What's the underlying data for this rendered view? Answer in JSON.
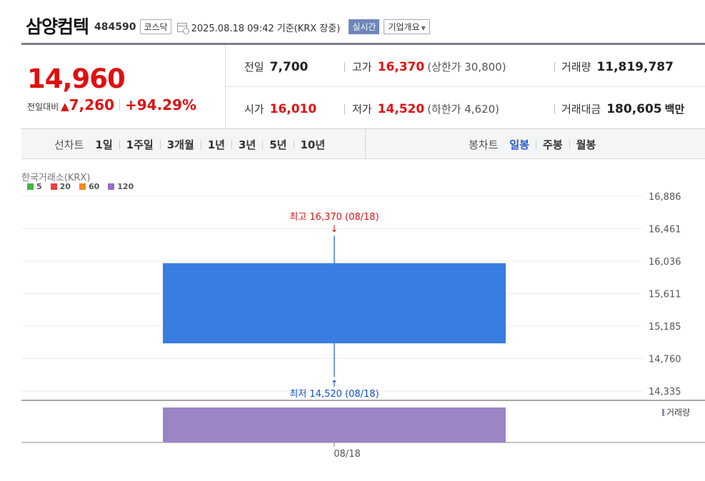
{
  "header": {
    "name": "삼양컴텍",
    "code": "484590",
    "market": "코스닥",
    "datetime": "2025.08.18 09:42  기준(KRX 장중)",
    "realtime": "실시간",
    "company_info": "기업개요"
  },
  "quote": {
    "price": "14,960",
    "change_label": "전일대비",
    "change_arrow": "▲",
    "change_value": "7,260",
    "change_pct": "+94.29%"
  },
  "stats": {
    "prev_close_label": "전일",
    "prev_close": "7,700",
    "high_label": "고가",
    "high": "16,370",
    "upper_limit": "(상한가 30,800)",
    "volume_label": "거래량",
    "volume": "11,819,787",
    "open_label": "시가",
    "open": "16,010",
    "low_label": "저가",
    "low": "14,520",
    "lower_limit": "(하한가 4,620)",
    "amount_label": "거래대금",
    "amount": "180,605",
    "amount_unit": "백만"
  },
  "period_bar": {
    "line_label": "선차트",
    "line_items": [
      "1일",
      "1주일",
      "3개월",
      "1년",
      "3년",
      "5년",
      "10년"
    ],
    "candle_label": "봉차트",
    "candle_items": [
      "일봉",
      "주봉",
      "월봉"
    ],
    "candle_active": 0
  },
  "colors": {
    "up": "#e01010",
    "down": "#1050d0",
    "candle": "#3a7de0",
    "volume": "#9b85c4",
    "ma5": "#44b244",
    "ma20": "#e84040",
    "ma60": "#f08a20",
    "ma120": "#9b6bc8"
  },
  "chart_data": {
    "type": "candlestick",
    "source_label": "한국거래소(KRX)",
    "legend": [
      "5",
      "20",
      "60",
      "120"
    ],
    "categories": [
      "08/18"
    ],
    "ohlc": [
      {
        "open": 16010,
        "high": 16370,
        "low": 14520,
        "close": 14960
      }
    ],
    "volume": [
      11819787
    ],
    "volume_label": "거래량",
    "high_annotation": "최고 16,370 (08/18)",
    "low_annotation": "최저 14,520 (08/18)",
    "y_ticks": [
      "16,886",
      "16,461",
      "16,036",
      "15,611",
      "15,185",
      "14,760",
      "14,335"
    ],
    "ylim": [
      14335,
      16886
    ]
  }
}
